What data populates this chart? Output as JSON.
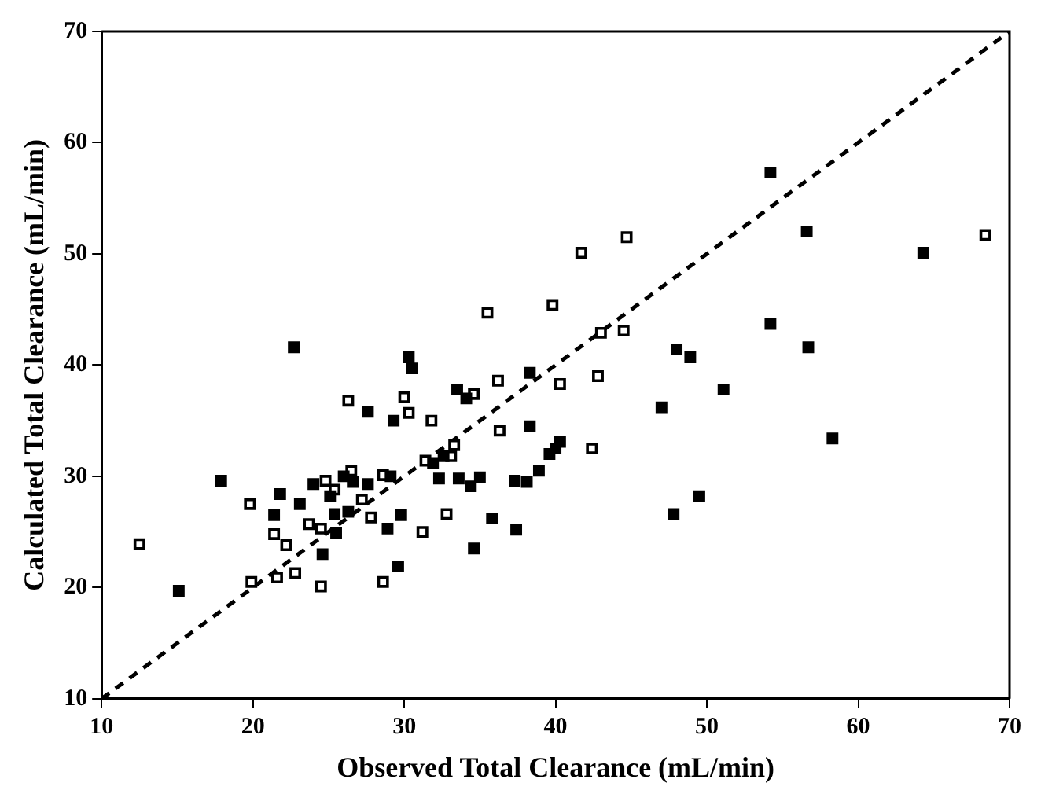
{
  "chart_data": {
    "type": "scatter",
    "xlabel": "Observed Total Clearance (mL/min)",
    "ylabel": "Calculated Total Clearance (mL/min)",
    "xlim": [
      10,
      70
    ],
    "ylim": [
      10,
      70
    ],
    "xticks": [
      10,
      20,
      30,
      40,
      50,
      60,
      70
    ],
    "yticks": [
      10,
      20,
      30,
      40,
      50,
      60,
      70
    ],
    "grid": false,
    "legend": false,
    "marker": "square",
    "series": [
      {
        "type": "scatter",
        "color": "#000000",
        "x": [
          15.1,
          17.9,
          21.8,
          21.4,
          23.1,
          24.0,
          24.6,
          25.1,
          25.5,
          25.4,
          26.0,
          26.3,
          26.6,
          27.6,
          27.6,
          29.3,
          29.1,
          29.8,
          28.9,
          29.6,
          22.7,
          30.3,
          30.5,
          33.5,
          34.1,
          38.3,
          48.0,
          48.9,
          47.0,
          38.3,
          40.3,
          40.0,
          39.6,
          38.9,
          37.3,
          38.1,
          35.0,
          34.4,
          33.6,
          32.3,
          31.9,
          32.6,
          35.8,
          37.4,
          34.6,
          47.8,
          49.5,
          54.2,
          56.6,
          64.3,
          54.2,
          56.7,
          51.1,
          58.3
        ],
        "values": [
          19.7,
          29.6,
          28.4,
          26.5,
          27.5,
          29.3,
          23.0,
          28.2,
          24.9,
          26.6,
          30.0,
          26.8,
          29.5,
          29.3,
          35.8,
          35.0,
          30.0,
          26.5,
          25.3,
          21.9,
          41.6,
          40.7,
          39.7,
          37.8,
          37.0,
          39.3,
          41.4,
          40.7,
          36.2,
          34.5,
          33.1,
          32.5,
          32.0,
          30.5,
          29.6,
          29.5,
          29.9,
          29.1,
          29.8,
          29.8,
          31.2,
          31.8,
          26.2,
          25.2,
          23.5,
          26.6,
          28.2,
          57.3,
          52.0,
          50.1,
          43.7,
          41.6,
          37.8,
          33.4
        ]
      },
      {
        "type": "scatter",
        "color": "#000000",
        "x": [
          12.5,
          19.8,
          19.9,
          21.4,
          21.6,
          22.2,
          22.8,
          23.7,
          24.5,
          24.5,
          24.8,
          25.4,
          26.5,
          26.3,
          27.2,
          27.8,
          28.6,
          28.6,
          30.0,
          30.3,
          31.2,
          31.4,
          31.8,
          34.6,
          36.2,
          35.5,
          39.8,
          40.3,
          42.8,
          43.0,
          44.5,
          36.3,
          42.4,
          33.3,
          33.1,
          32.8,
          41.7,
          44.7,
          68.4
        ],
        "values": [
          23.9,
          27.5,
          20.5,
          24.8,
          20.9,
          23.8,
          21.3,
          25.7,
          25.3,
          20.1,
          29.6,
          28.8,
          30.5,
          36.8,
          27.9,
          26.3,
          30.1,
          20.5,
          37.1,
          35.7,
          25.0,
          31.4,
          35.0,
          37.4,
          38.6,
          44.7,
          45.4,
          38.3,
          39.0,
          42.9,
          43.1,
          34.1,
          32.5,
          32.8,
          31.8,
          26.6,
          50.1,
          51.5,
          51.7
        ]
      },
      {
        "type": "line",
        "color": "#000000",
        "line_style": "dashed",
        "marker": "none",
        "x": [
          10,
          70
        ],
        "values": [
          10,
          70
        ]
      }
    ]
  }
}
